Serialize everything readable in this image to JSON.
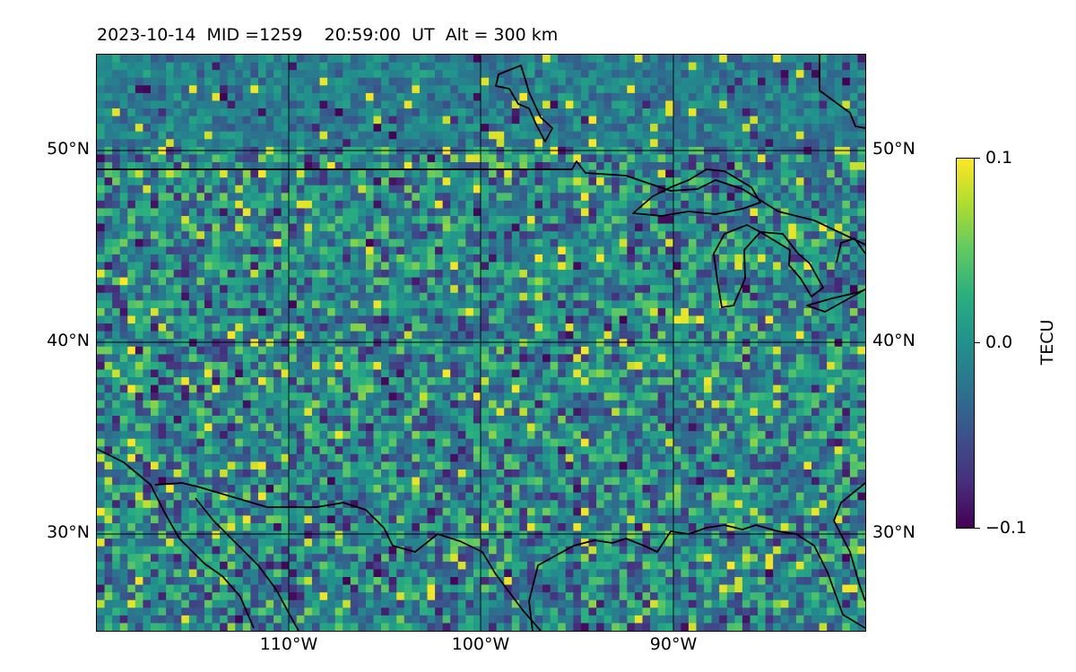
{
  "title": {
    "date": "2023-10-14",
    "mid_label": "MID =1259",
    "time": "20:59:00",
    "time_unit": "UT",
    "altitude": "Alt = 300 km"
  },
  "map": {
    "region": "continental-us-central-east",
    "lon_range": [
      -120,
      -80
    ],
    "lat_range": [
      25,
      55
    ],
    "gridlines": true,
    "latitude_labels": [
      "50°N",
      "40°N",
      "30°N"
    ],
    "longitude_labels": [
      "110°W",
      "100°W",
      "90°W"
    ],
    "features": [
      "coastlines",
      "lakes",
      "us-canada-border",
      "us-mexico-border"
    ]
  },
  "colorbar": {
    "label": "TECU",
    "colormap": "viridis",
    "ticks": [
      "0.1",
      "0.0",
      "−0.1"
    ],
    "vmin": -0.1,
    "vmax": 0.1
  },
  "colors": {
    "viridis": [
      "#440154",
      "#472f7d",
      "#3b528b",
      "#2c728e",
      "#21918c",
      "#28ae80",
      "#5ec962",
      "#addc30",
      "#fde725"
    ],
    "boundary": "#000000"
  }
}
